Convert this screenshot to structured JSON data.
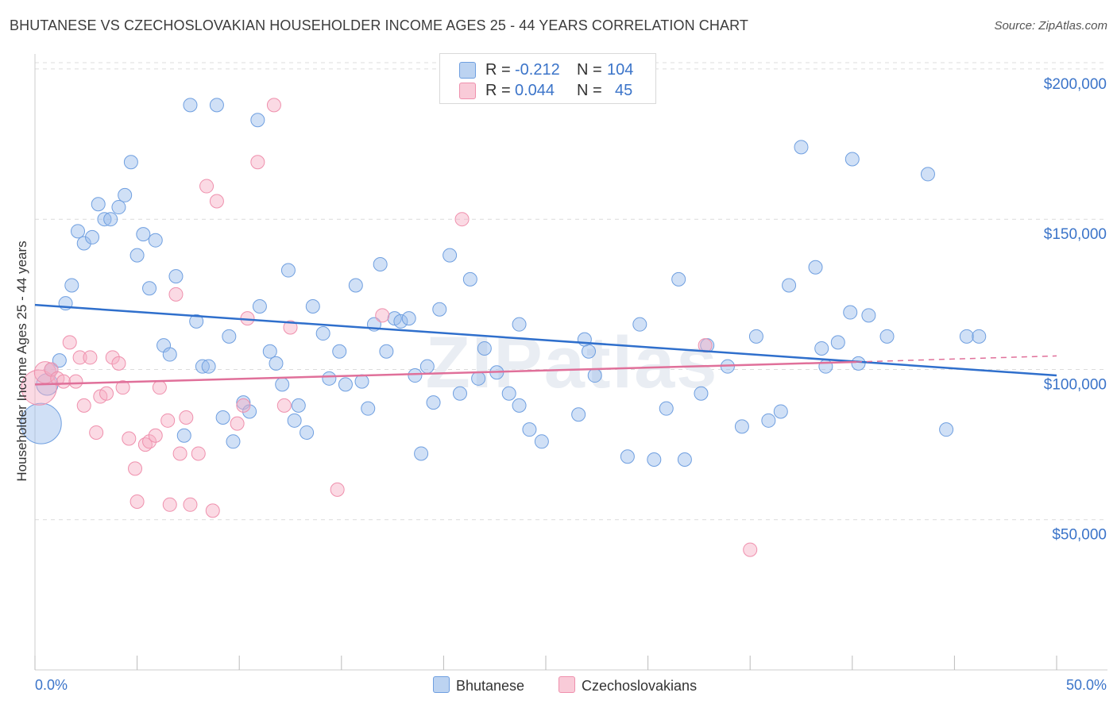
{
  "title": "BHUTANESE VS CZECHOSLOVAKIAN HOUSEHOLDER INCOME AGES 25 - 44 YEARS CORRELATION CHART",
  "source": "Source: ZipAtlas.com",
  "watermark": "ZIPatlas",
  "legend": {
    "r_label": "R =",
    "n_label": "N =",
    "rows": [
      {
        "name": "Bhutanese",
        "r": "-0.212",
        "n": "104",
        "color": "#6f9fe0"
      },
      {
        "name": "Czechoslovakians",
        "r": "0.044",
        "n": "45",
        "color": "#ef90ad"
      }
    ]
  },
  "chart_data": {
    "type": "scatter",
    "xlabel": "",
    "ylabel": "Householder Income Ages 25 - 44 years",
    "xlim": [
      0,
      50
    ],
    "ylim": [
      0,
      205000
    ],
    "x_tick_labels": [
      {
        "value": 0,
        "label": "0.0%"
      },
      {
        "value": 50,
        "label": "50.0%"
      }
    ],
    "y_ticks": [
      {
        "value": 50000,
        "label": "$50,000"
      },
      {
        "value": 100000,
        "label": "$100,000"
      },
      {
        "value": 150000,
        "label": "$150,000"
      },
      {
        "value": 200000,
        "label": "$200,000"
      }
    ],
    "grid": true,
    "legend_position": "top-center",
    "series": [
      {
        "name": "Bhutanese",
        "color": "#6f9fe0",
        "trend": {
          "x0": 0,
          "y0": 121500,
          "x1": 50,
          "y1": 98000
        },
        "points": [
          [
            0.3,
            82000,
            3
          ],
          [
            0.6,
            95000,
            1.6
          ],
          [
            0.8,
            100000,
            1
          ],
          [
            1.2,
            103000,
            1
          ],
          [
            1.5,
            122000,
            1
          ],
          [
            1.8,
            128000,
            1
          ],
          [
            2.1,
            146000,
            1
          ],
          [
            2.4,
            142000,
            1
          ],
          [
            2.8,
            144000,
            1
          ],
          [
            3.1,
            155000,
            1
          ],
          [
            3.4,
            150000,
            1
          ],
          [
            3.7,
            150000,
            1
          ],
          [
            4.1,
            154000,
            1
          ],
          [
            4.4,
            158000,
            1
          ],
          [
            4.7,
            169000,
            1
          ],
          [
            5.0,
            138000,
            1
          ],
          [
            5.3,
            145000,
            1
          ],
          [
            5.6,
            127000,
            1
          ],
          [
            5.9,
            143000,
            1
          ],
          [
            6.3,
            108000,
            1
          ],
          [
            6.6,
            105000,
            1
          ],
          [
            6.9,
            131000,
            1
          ],
          [
            7.3,
            78000,
            1
          ],
          [
            7.6,
            188000,
            1
          ],
          [
            7.9,
            116000,
            1
          ],
          [
            8.2,
            101000,
            1
          ],
          [
            8.5,
            101000,
            1
          ],
          [
            8.9,
            188000,
            1
          ],
          [
            9.2,
            84000,
            1
          ],
          [
            9.5,
            111000,
            1
          ],
          [
            9.7,
            76000,
            1
          ],
          [
            10.2,
            89000,
            1
          ],
          [
            10.5,
            86000,
            1
          ],
          [
            10.9,
            183000,
            1
          ],
          [
            11.0,
            121000,
            1
          ],
          [
            11.5,
            106000,
            1
          ],
          [
            11.8,
            102000,
            1
          ],
          [
            12.1,
            95000,
            1
          ],
          [
            12.4,
            133000,
            1
          ],
          [
            12.7,
            83000,
            1
          ],
          [
            12.9,
            88000,
            1
          ],
          [
            13.3,
            79000,
            1
          ],
          [
            13.6,
            121000,
            1
          ],
          [
            14.1,
            112000,
            1
          ],
          [
            14.4,
            97000,
            1
          ],
          [
            14.9,
            106000,
            1
          ],
          [
            15.2,
            95000,
            1
          ],
          [
            15.7,
            128000,
            1
          ],
          [
            16.0,
            96000,
            1
          ],
          [
            16.3,
            87000,
            1
          ],
          [
            16.6,
            115000,
            1
          ],
          [
            16.9,
            135000,
            1
          ],
          [
            17.2,
            106000,
            1
          ],
          [
            17.6,
            117000,
            1
          ],
          [
            17.9,
            116000,
            1
          ],
          [
            18.3,
            117000,
            1
          ],
          [
            18.6,
            98000,
            1
          ],
          [
            18.9,
            72000,
            1
          ],
          [
            19.2,
            101000,
            1
          ],
          [
            19.5,
            89000,
            1
          ],
          [
            19.8,
            120000,
            1
          ],
          [
            20.3,
            138000,
            1
          ],
          [
            20.8,
            92000,
            1
          ],
          [
            21.3,
            130000,
            1
          ],
          [
            21.7,
            97000,
            1
          ],
          [
            22.0,
            107000,
            1
          ],
          [
            22.6,
            99000,
            1
          ],
          [
            23.2,
            92000,
            1
          ],
          [
            23.7,
            88000,
            1
          ],
          [
            23.7,
            115000,
            1
          ],
          [
            24.2,
            80000,
            1
          ],
          [
            24.8,
            76000,
            1
          ],
          [
            26.6,
            85000,
            1
          ],
          [
            26.9,
            110000,
            1
          ],
          [
            27.1,
            106000,
            1
          ],
          [
            27.4,
            98000,
            1
          ],
          [
            29.0,
            71000,
            1
          ],
          [
            29.6,
            115000,
            1
          ],
          [
            30.3,
            70000,
            1
          ],
          [
            30.9,
            87000,
            1
          ],
          [
            31.5,
            130000,
            1
          ],
          [
            31.8,
            70000,
            1
          ],
          [
            32.6,
            92000,
            1
          ],
          [
            32.9,
            108000,
            1
          ],
          [
            33.9,
            101000,
            1
          ],
          [
            34.6,
            81000,
            1
          ],
          [
            35.3,
            111000,
            1
          ],
          [
            35.9,
            83000,
            1
          ],
          [
            36.5,
            86000,
            1
          ],
          [
            36.9,
            128000,
            1
          ],
          [
            37.5,
            174000,
            1
          ],
          [
            38.2,
            134000,
            1
          ],
          [
            38.5,
            107000,
            1
          ],
          [
            38.7,
            101000,
            1
          ],
          [
            39.3,
            109000,
            1
          ],
          [
            39.9,
            119000,
            1
          ],
          [
            40.0,
            170000,
            1
          ],
          [
            40.3,
            102000,
            1
          ],
          [
            40.8,
            118000,
            1
          ],
          [
            41.7,
            111000,
            1
          ],
          [
            43.7,
            165000,
            1
          ],
          [
            44.6,
            80000,
            1
          ],
          [
            45.6,
            111000,
            1
          ],
          [
            46.2,
            111000,
            1
          ]
        ]
      },
      {
        "name": "Czechoslovakians",
        "color": "#ef90ad",
        "trend": {
          "x0": 0,
          "y0": 95000,
          "x1": 40.2,
          "y1": 102500,
          "dash_to": {
            "x": 50,
            "y": 104500
          }
        },
        "points": [
          [
            0.2,
            94000,
            2.6
          ],
          [
            0.5,
            99000,
            1.6
          ],
          [
            0.8,
            100000,
            1
          ],
          [
            1.1,
            97000,
            1
          ],
          [
            1.4,
            96000,
            1
          ],
          [
            1.7,
            109000,
            1
          ],
          [
            2.0,
            96000,
            1
          ],
          [
            2.2,
            104000,
            1
          ],
          [
            2.4,
            88000,
            1
          ],
          [
            2.7,
            104000,
            1
          ],
          [
            3.0,
            79000,
            1
          ],
          [
            3.2,
            91000,
            1
          ],
          [
            3.5,
            92000,
            1
          ],
          [
            3.8,
            104000,
            1
          ],
          [
            4.1,
            102000,
            1
          ],
          [
            4.3,
            94000,
            1
          ],
          [
            4.6,
            77000,
            1
          ],
          [
            4.9,
            67000,
            1
          ],
          [
            5.0,
            56000,
            1
          ],
          [
            5.4,
            75000,
            1
          ],
          [
            5.6,
            76000,
            1
          ],
          [
            5.9,
            78000,
            1
          ],
          [
            6.1,
            94000,
            1
          ],
          [
            6.5,
            83000,
            1
          ],
          [
            6.6,
            55000,
            1
          ],
          [
            6.9,
            125000,
            1
          ],
          [
            7.1,
            72000,
            1
          ],
          [
            7.4,
            84000,
            1
          ],
          [
            7.6,
            55000,
            1
          ],
          [
            8.0,
            72000,
            1
          ],
          [
            8.4,
            161000,
            1
          ],
          [
            8.7,
            53000,
            1
          ],
          [
            8.9,
            156000,
            1
          ],
          [
            9.9,
            82000,
            1
          ],
          [
            10.2,
            88000,
            1
          ],
          [
            10.4,
            117000,
            1
          ],
          [
            10.9,
            169000,
            1
          ],
          [
            11.7,
            188000,
            1
          ],
          [
            12.2,
            88000,
            1
          ],
          [
            12.5,
            114000,
            1
          ],
          [
            14.8,
            60000,
            1
          ],
          [
            17.0,
            118000,
            1
          ],
          [
            20.9,
            150000,
            1
          ],
          [
            32.8,
            108000,
            1
          ],
          [
            35.0,
            40000,
            1
          ]
        ]
      }
    ]
  }
}
